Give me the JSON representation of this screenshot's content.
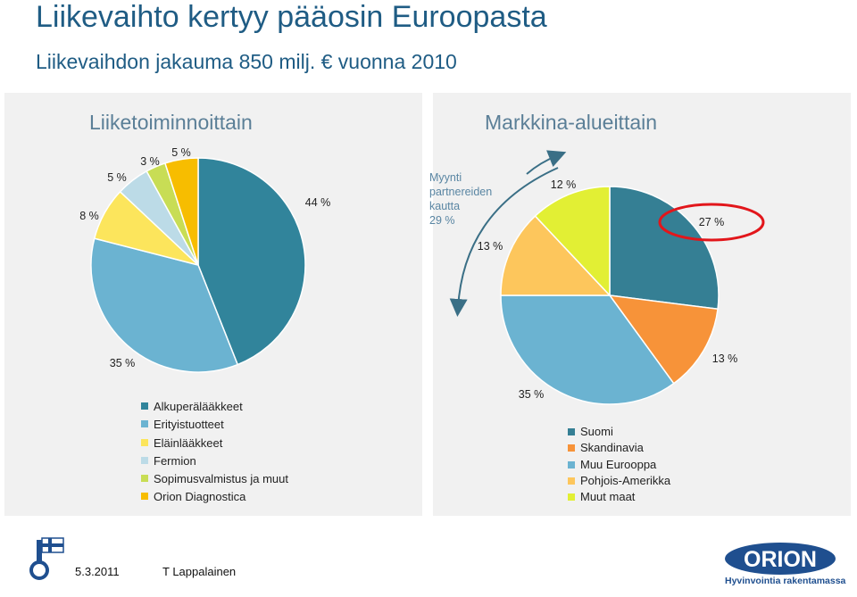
{
  "slide": {
    "title": "Liikevaihto kertyy pääosin Euroopasta",
    "subtitle": "Liikevaihdon jakauma 850 milj. € vuonna 2010",
    "footer_date": "5.3.2011",
    "footer_author": "T Lappalainen",
    "logo_text": "ORION",
    "logo_tagline": "Hyvinvointia rakentamassa"
  },
  "chart_data": [
    {
      "type": "pie",
      "title": "Liiketoiminnoittain",
      "slices": [
        {
          "name": "Alkuperälääkkeet",
          "value": 44,
          "label": "44 %",
          "color": "#31849b"
        },
        {
          "name": "Erityistuotteet",
          "value": 35,
          "label": "35 %",
          "color": "#6bb3d1"
        },
        {
          "name": "Eläinlääkkeet",
          "value": 8,
          "label": "8 %",
          "color": "#fce55c"
        },
        {
          "name": "Fermion",
          "value": 5,
          "label": "5 %",
          "color": "#bcdbe7"
        },
        {
          "name": "Sopimusvalmistus ja muut",
          "value": 3,
          "label": "3 %",
          "color": "#c8dd55"
        },
        {
          "name": "Orion Diagnostica",
          "value": 5,
          "label": "5 %",
          "color": "#f7bd00"
        }
      ]
    },
    {
      "type": "pie",
      "title": "Markkina-alueittain",
      "slices": [
        {
          "name": "Suomi",
          "value": 27,
          "label": "27 %",
          "color": "#357f94"
        },
        {
          "name": "Skandinavia",
          "value": 13,
          "label": "13 %",
          "color": "#f79339"
        },
        {
          "name": "Muu Eurooppa",
          "value": 35,
          "label": "35 %",
          "color": "#6bb3d1"
        },
        {
          "name": "Pohjois-Amerikka",
          "value": 13,
          "label": "13 %",
          "color": "#fdc65c"
        },
        {
          "name": "Muut maat",
          "value": 12,
          "label": "12 %",
          "color": "#e2ef34"
        }
      ],
      "annotation": {
        "lines": [
          "Myynti",
          "partnereiden",
          "kautta",
          "29 %"
        ]
      }
    }
  ]
}
